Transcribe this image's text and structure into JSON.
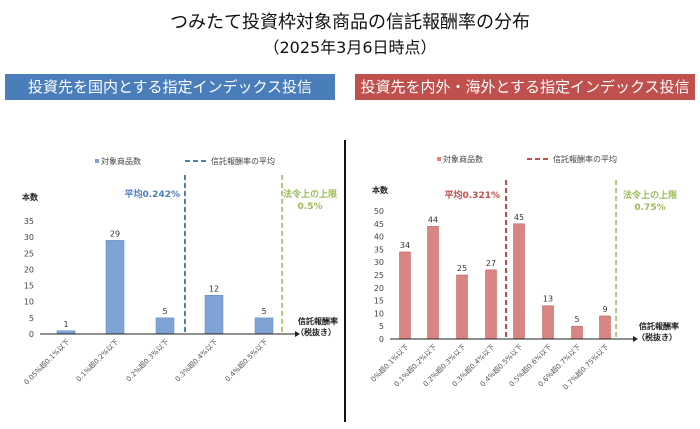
{
  "title": "つみたて投資枠対象商品の信託報酬率の分布",
  "subtitle": "（2025年3月6日時点）",
  "colors": {
    "blue": "#4a7ebb",
    "red": "#c0504d",
    "limit": "#9bbb59",
    "bar_blue": "#7fa3d4",
    "bar_red": "#d98583"
  },
  "chart_data": [
    {
      "type": "bar",
      "banner": "投資先を国内とする指定インデックス投信",
      "legend_bar": "対象商品数",
      "legend_line": "信託報酬率の平均",
      "ylabel": "本数",
      "xlabel": [
        "信託報酬率",
        "（税抜き）"
      ],
      "ylim": [
        0,
        35
      ],
      "yticks": [
        0,
        5,
        10,
        15,
        20,
        25,
        30,
        35
      ],
      "categories": [
        "0.05%超0.1%以下",
        "0.1%超0.2%以下",
        "0.2%超0.3%以下",
        "0.3%超0.4%以下",
        "0.4%超0.5%以下"
      ],
      "values": [
        1,
        29,
        5,
        12,
        5
      ],
      "average_label": "平均0.242%",
      "limit_label": [
        "法令上の上限",
        "0.5%"
      ]
    },
    {
      "type": "bar",
      "banner": "投資先を内外・海外とする指定インデックス投信",
      "legend_bar": "対象商品数",
      "legend_line": "信託報酬率の平均",
      "ylabel": "本数",
      "xlabel": [
        "信託報酬率",
        "（税抜き）"
      ],
      "ylim": [
        0,
        50
      ],
      "yticks": [
        0,
        5,
        10,
        15,
        20,
        25,
        30,
        35,
        40,
        45,
        50
      ],
      "categories": [
        "0%超0.1%以下",
        "0.1%超0.2%以下",
        "0.2%超0.3%以下",
        "0.3%超0.4%以下",
        "0.4%超0.5%以下",
        "0.5%超0.6%以下",
        "0.6%超0.7%以下",
        "0.7%超0.75%以下"
      ],
      "values": [
        34,
        44,
        25,
        27,
        45,
        13,
        5,
        9
      ],
      "average_label": "平均0.321%",
      "limit_label": [
        "法令上の上限",
        "0.75%"
      ]
    }
  ]
}
